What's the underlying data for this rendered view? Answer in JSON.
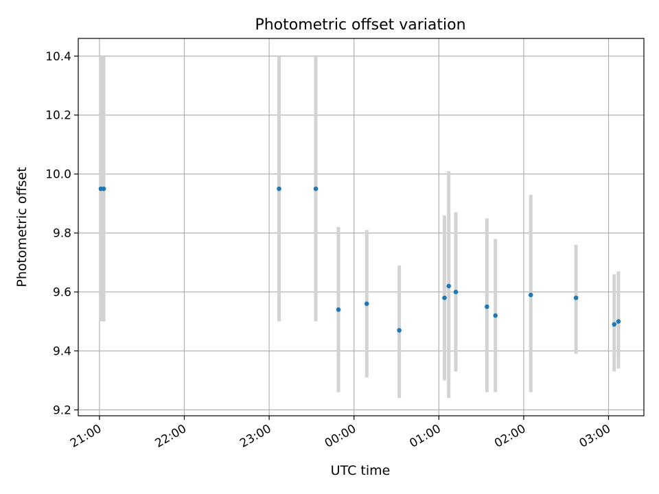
{
  "chart_data": {
    "type": "scatter",
    "title": "Photometric offset variation",
    "xlabel": "UTC time",
    "ylabel": "Photometric offset",
    "x_unit": "UTC",
    "xlim": [
      "20:45",
      "03:25"
    ],
    "ylim": [
      9.18,
      10.46
    ],
    "grid": true,
    "x_ticks": [
      "21:00",
      "22:00",
      "23:00",
      "00:00",
      "01:00",
      "02:00",
      "03:00"
    ],
    "y_ticks": [
      "9.2",
      "9.4",
      "9.6",
      "9.8",
      "10.0",
      "10.2",
      "10.4"
    ],
    "points": [
      {
        "t": "21:01",
        "y": 9.95,
        "err_low": 9.5,
        "err_high": 10.4
      },
      {
        "t": "21:03",
        "y": 9.95,
        "err_low": 9.5,
        "err_high": 10.4
      },
      {
        "t": "23:07",
        "y": 9.95,
        "err_low": 9.5,
        "err_high": 10.4
      },
      {
        "t": "23:33",
        "y": 9.95,
        "err_low": 9.5,
        "err_high": 10.4
      },
      {
        "t": "23:49",
        "y": 9.54,
        "err_low": 9.26,
        "err_high": 9.82
      },
      {
        "t": "00:09",
        "y": 9.56,
        "err_low": 9.31,
        "err_high": 9.81
      },
      {
        "t": "00:32",
        "y": 9.47,
        "err_low": 9.24,
        "err_high": 9.69
      },
      {
        "t": "01:04",
        "y": 9.58,
        "err_low": 9.3,
        "err_high": 9.86
      },
      {
        "t": "01:07",
        "y": 9.62,
        "err_low": 9.24,
        "err_high": 10.01
      },
      {
        "t": "01:12",
        "y": 9.6,
        "err_low": 9.33,
        "err_high": 9.87
      },
      {
        "t": "01:34",
        "y": 9.55,
        "err_low": 9.26,
        "err_high": 9.85
      },
      {
        "t": "01:40",
        "y": 9.52,
        "err_low": 9.26,
        "err_high": 9.78
      },
      {
        "t": "02:05",
        "y": 9.59,
        "err_low": 9.26,
        "err_high": 9.93
      },
      {
        "t": "02:37",
        "y": 9.58,
        "err_low": 9.39,
        "err_high": 9.76
      },
      {
        "t": "03:04",
        "y": 9.49,
        "err_low": 9.33,
        "err_high": 9.66
      },
      {
        "t": "03:07",
        "y": 9.5,
        "err_low": 9.34,
        "err_high": 9.67
      }
    ],
    "colors": {
      "marker": "#1f77b4",
      "errorbar": "#d3d3d3",
      "grid": "#b0b0b0",
      "axes": "#000000"
    }
  }
}
